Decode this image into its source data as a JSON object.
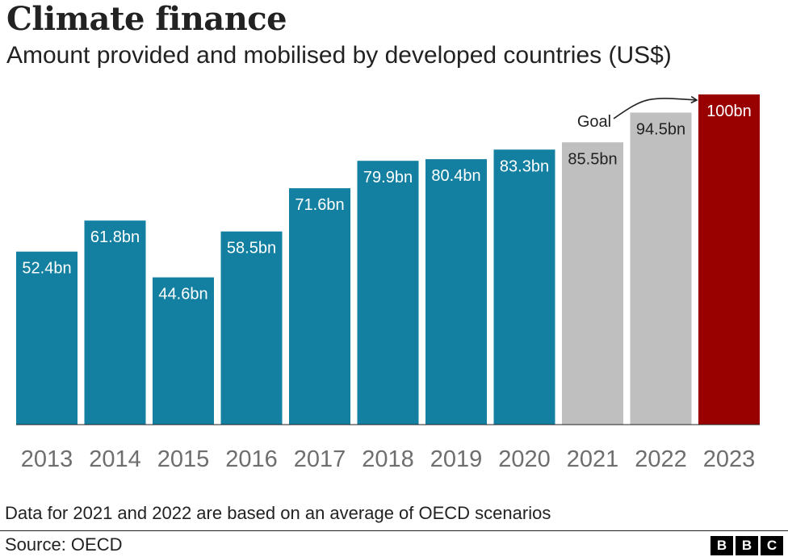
{
  "header": {
    "title": "Climate finance",
    "subtitle": "Amount provided and mobilised by developed countries (US$)"
  },
  "footer": {
    "note": "Data for 2021 and 2022 are based on an average of OECD scenarios",
    "source": "Source: OECD",
    "logo_letters": [
      "B",
      "B",
      "C"
    ]
  },
  "chart_data": {
    "type": "bar",
    "title": "Climate finance",
    "subtitle": "Amount provided and mobilised by developed countries (US$)",
    "categories": [
      "2013",
      "2014",
      "2015",
      "2016",
      "2017",
      "2018",
      "2019",
      "2020",
      "2021",
      "2022",
      "2023"
    ],
    "values": [
      52.4,
      61.8,
      44.6,
      58.5,
      71.6,
      79.9,
      80.4,
      83.3,
      85.5,
      94.5,
      100
    ],
    "data_labels": [
      "52.4bn",
      "61.8bn",
      "44.6bn",
      "58.5bn",
      "71.6bn",
      "79.9bn",
      "80.4bn",
      "83.3bn",
      "85.5bn",
      "94.5bn",
      "100bn"
    ],
    "bar_colors": [
      "#1380a1",
      "#1380a1",
      "#1380a1",
      "#1380a1",
      "#1380a1",
      "#1380a1",
      "#1380a1",
      "#1380a1",
      "#bfbfbf",
      "#bfbfbf",
      "#990000"
    ],
    "ylim": [
      0,
      100
    ],
    "grid": false,
    "xlabel": "",
    "ylabel": "",
    "annotations": [
      {
        "text": "Goal",
        "target": "2023"
      }
    ]
  }
}
